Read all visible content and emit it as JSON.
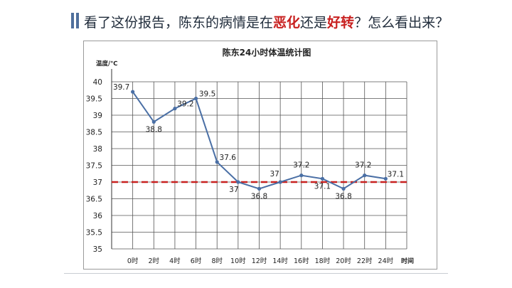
{
  "header": {
    "question_part1": "看了这份报告，陈东的病情是在",
    "highlight_worse": "恶化",
    "question_part2": "还是",
    "highlight_better": "好转",
    "question_part3": "？怎么看出来？"
  },
  "colors": {
    "line": "#4a6fa5",
    "reference": "#c8201f",
    "highlight_text": "#c8201f",
    "header_bar": "#4f6f9c"
  },
  "chart_data": {
    "type": "line",
    "title": "陈东24小时体温统计图",
    "ylabel": "温度/℃",
    "xlabel": "时间",
    "categories": [
      "0时",
      "2时",
      "4时",
      "6时",
      "8时",
      "10时",
      "12时",
      "14时",
      "16时",
      "18时",
      "20时",
      "22时",
      "24时"
    ],
    "series": [
      {
        "values": [
          39.7,
          38.8,
          39.2,
          39.5,
          37.6,
          37.0,
          36.8,
          37.0,
          37.2,
          37.1,
          36.8,
          37.2,
          37.1
        ]
      }
    ],
    "data_labels": [
      "39.7",
      "38.8",
      "39.2",
      "39.5",
      "37.6",
      "37",
      "36.8",
      "37",
      "37.2",
      "37.1",
      "36.8",
      "37.2",
      "37.1"
    ],
    "y_ticks": [
      "35",
      "35.5",
      "36",
      "36.5",
      "37",
      "37.5",
      "38",
      "38.5",
      "39",
      "39.5",
      "40"
    ],
    "ylim": [
      35,
      40
    ],
    "reference_line": 37,
    "grid": true
  }
}
